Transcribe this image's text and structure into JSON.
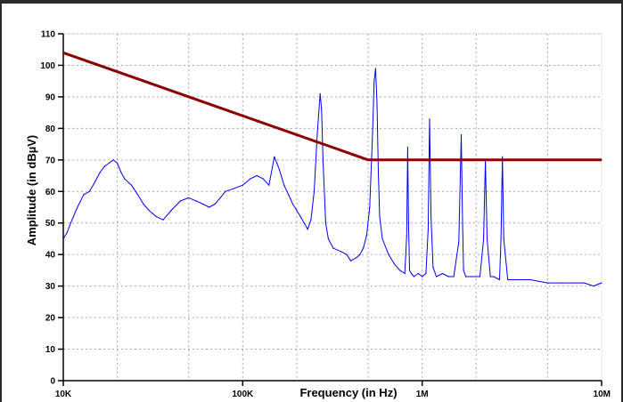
{
  "chart_data": {
    "type": "line",
    "title": "",
    "xlabel": "Frequency (in Hz)",
    "ylabel": "Amplitude (in dBµV)",
    "x_scale": "log",
    "xlim": [
      10000,
      10000000
    ],
    "ylim": [
      0,
      110
    ],
    "grid": true,
    "legend": "none",
    "x_ticks": [
      {
        "value": 10000,
        "label": "10K"
      },
      {
        "value": 100000,
        "label": "100K"
      },
      {
        "value": 1000000,
        "label": "1M"
      },
      {
        "value": 10000000,
        "label": "10M"
      }
    ],
    "y_ticks": [
      0,
      10,
      20,
      30,
      40,
      50,
      60,
      70,
      80,
      90,
      100,
      110
    ],
    "series": [
      {
        "color": "#8b0000",
        "x": [
          10000,
          500000,
          10000000
        ],
        "values": [
          104,
          70,
          70
        ]
      },
      {
        "color": "#0000ff",
        "x": [
          10000,
          10500,
          11000,
          12000,
          13000,
          14000,
          15000,
          16000,
          17000,
          18000,
          19000,
          20000,
          21000,
          22000,
          24000,
          26000,
          28000,
          30000,
          33000,
          36000,
          40000,
          45000,
          50000,
          55000,
          60000,
          65000,
          70000,
          75000,
          80000,
          90000,
          100000,
          110000,
          120000,
          130000,
          140000,
          150000,
          155000,
          160000,
          170000,
          180000,
          190000,
          200000,
          210000,
          220000,
          230000,
          240000,
          250000,
          260000,
          270000,
          275000,
          280000,
          290000,
          300000,
          320000,
          350000,
          380000,
          400000,
          430000,
          450000,
          470000,
          490000,
          510000,
          530000,
          540000,
          550000,
          560000,
          570000,
          580000,
          600000,
          650000,
          700000,
          750000,
          800000,
          820000,
          830000,
          840000,
          850000,
          870000,
          900000,
          950000,
          1000000,
          1050000,
          1080000,
          1100000,
          1120000,
          1150000,
          1200000,
          1300000,
          1400000,
          1500000,
          1600000,
          1650000,
          1680000,
          1700000,
          1750000,
          1900000,
          2100000,
          2200000,
          2250000,
          2300000,
          2400000,
          2500000,
          2700000,
          2750000,
          2800000,
          2850000,
          3000000,
          3500000,
          4000000,
          5000000,
          6000000,
          7000000,
          8000000,
          9000000,
          10000000
        ],
        "values": [
          45,
          47,
          50,
          55,
          59,
          60,
          63,
          66,
          68,
          69,
          70,
          69,
          66,
          64,
          62,
          59,
          56,
          54,
          52,
          51,
          54,
          57,
          58,
          57,
          56,
          55,
          56,
          58,
          60,
          61,
          62,
          64,
          65,
          64,
          62,
          71,
          69,
          67,
          62,
          59,
          56,
          54,
          52,
          50,
          48,
          51,
          60,
          78,
          91,
          86,
          70,
          50,
          45,
          42,
          41,
          40,
          38,
          39,
          40,
          42,
          46,
          55,
          80,
          95,
          99,
          88,
          66,
          52,
          45,
          40,
          37,
          35,
          34,
          46,
          74,
          50,
          35,
          34,
          33,
          34,
          33,
          34,
          48,
          83,
          52,
          36,
          33,
          34,
          33,
          33,
          44,
          78,
          50,
          35,
          33,
          33,
          33,
          45,
          70,
          45,
          33,
          33,
          32,
          45,
          71,
          45,
          32,
          32,
          32,
          31,
          31,
          31,
          31,
          30,
          31
        ]
      }
    ]
  }
}
